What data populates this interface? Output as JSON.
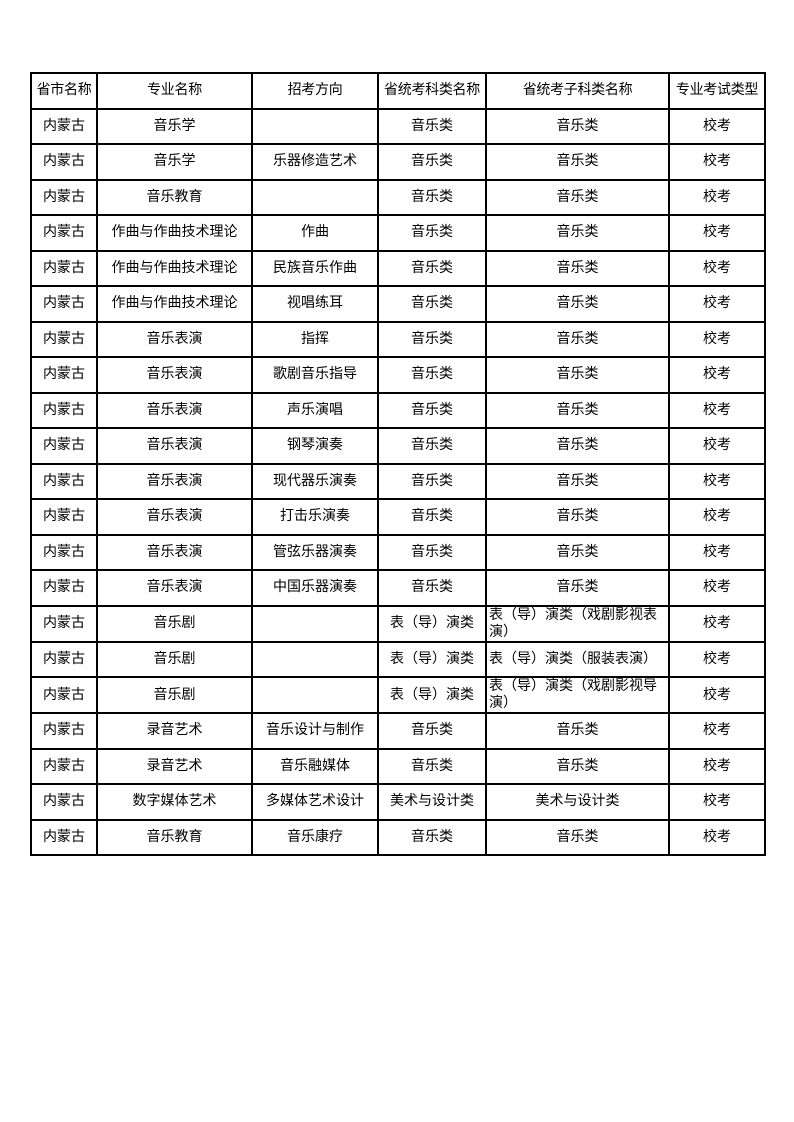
{
  "table": {
    "headers": [
      "省市名称",
      "专业名称",
      "招考方向",
      "省统考科类名称",
      "省统考子科类名称",
      "专业考试类型"
    ],
    "rows": [
      [
        "内蒙古",
        "音乐学",
        "",
        "音乐类",
        "音乐类",
        "校考"
      ],
      [
        "内蒙古",
        "音乐学",
        "乐器修造艺术",
        "音乐类",
        "音乐类",
        "校考"
      ],
      [
        "内蒙古",
        "音乐教育",
        "",
        "音乐类",
        "音乐类",
        "校考"
      ],
      [
        "内蒙古",
        "作曲与作曲技术理论",
        "作曲",
        "音乐类",
        "音乐类",
        "校考"
      ],
      [
        "内蒙古",
        "作曲与作曲技术理论",
        "民族音乐作曲",
        "音乐类",
        "音乐类",
        "校考"
      ],
      [
        "内蒙古",
        "作曲与作曲技术理论",
        "视唱练耳",
        "音乐类",
        "音乐类",
        "校考"
      ],
      [
        "内蒙古",
        "音乐表演",
        "指挥",
        "音乐类",
        "音乐类",
        "校考"
      ],
      [
        "内蒙古",
        "音乐表演",
        "歌剧音乐指导",
        "音乐类",
        "音乐类",
        "校考"
      ],
      [
        "内蒙古",
        "音乐表演",
        "声乐演唱",
        "音乐类",
        "音乐类",
        "校考"
      ],
      [
        "内蒙古",
        "音乐表演",
        "钢琴演奏",
        "音乐类",
        "音乐类",
        "校考"
      ],
      [
        "内蒙古",
        "音乐表演",
        "现代器乐演奏",
        "音乐类",
        "音乐类",
        "校考"
      ],
      [
        "内蒙古",
        "音乐表演",
        "打击乐演奏",
        "音乐类",
        "音乐类",
        "校考"
      ],
      [
        "内蒙古",
        "音乐表演",
        "管弦乐器演奏",
        "音乐类",
        "音乐类",
        "校考"
      ],
      [
        "内蒙古",
        "音乐表演",
        "中国乐器演奏",
        "音乐类",
        "音乐类",
        "校考"
      ],
      [
        "内蒙古",
        "音乐剧",
        "",
        "表（导）演类",
        "表（导）演类（戏剧影视表演）",
        "校考"
      ],
      [
        "内蒙古",
        "音乐剧",
        "",
        "表（导）演类",
        "表（导）演类（服装表演）",
        "校考"
      ],
      [
        "内蒙古",
        "音乐剧",
        "",
        "表（导）演类",
        "表（导）演类（戏剧影视导演）",
        "校考"
      ],
      [
        "内蒙古",
        "录音艺术",
        "音乐设计与制作",
        "音乐类",
        "音乐类",
        "校考"
      ],
      [
        "内蒙古",
        "录音艺术",
        "音乐融媒体",
        "音乐类",
        "音乐类",
        "校考"
      ],
      [
        "内蒙古",
        "数字媒体艺术",
        "多媒体艺术设计",
        "美术与设计类",
        "美术与设计类",
        "校考"
      ],
      [
        "内蒙古",
        "音乐教育",
        "音乐康疗",
        "音乐类",
        "音乐类",
        "校考"
      ]
    ]
  }
}
